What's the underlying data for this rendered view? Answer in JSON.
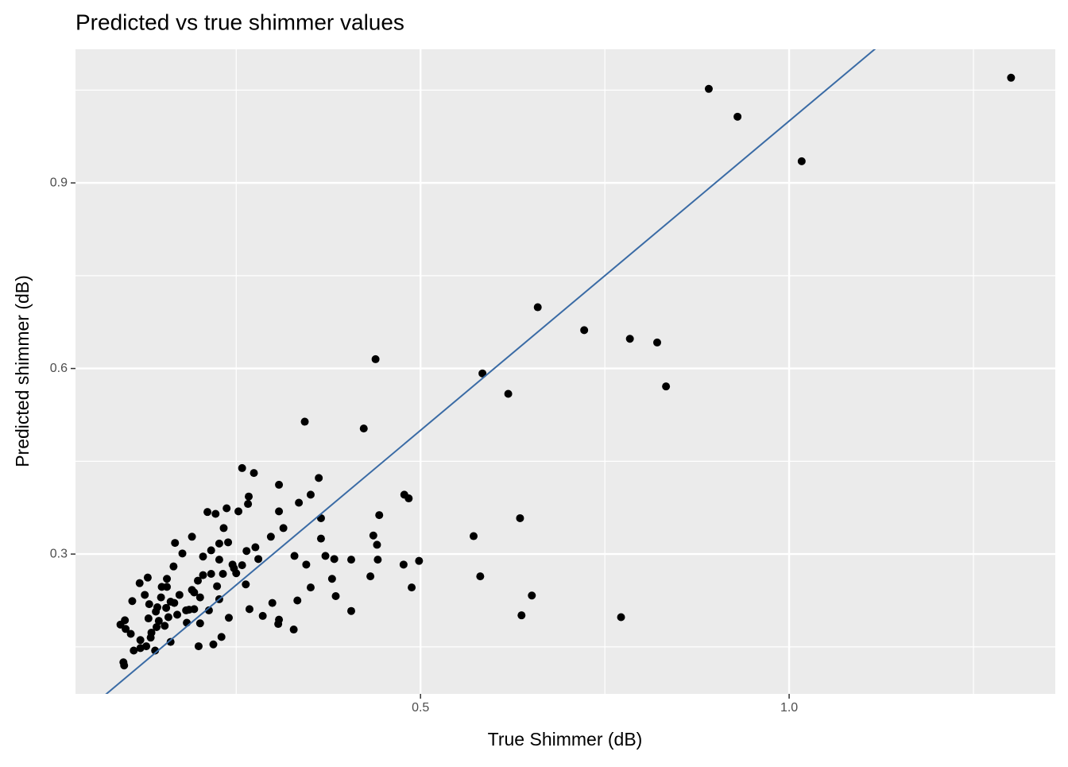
{
  "chart_data": {
    "type": "scatter",
    "title": "Predicted vs true shimmer values",
    "x_label": "True Shimmer (dB)",
    "y_label": "Predicted shimmer (dB)",
    "color": "#000000",
    "x": [
      1.301,
      0.891,
      0.93,
      1.017,
      0.659,
      0.722,
      0.784,
      0.821,
      0.833,
      0.439,
      0.584,
      0.619,
      0.343,
      0.423,
      0.258,
      0.274,
      0.362,
      0.308,
      0.478,
      0.484,
      0.351,
      0.267,
      0.335,
      0.266,
      0.237,
      0.211,
      0.222,
      0.253,
      0.308,
      0.444,
      0.365,
      0.635,
      0.233,
      0.314,
      0.436,
      0.572,
      0.297,
      0.365,
      0.19,
      0.167,
      0.227,
      0.239,
      0.441,
      0.276,
      0.216,
      0.264,
      0.177,
      0.205,
      0.329,
      0.371,
      0.28,
      0.227,
      0.383,
      0.406,
      0.442,
      0.498,
      0.245,
      0.258,
      0.345,
      0.477,
      0.165,
      0.247,
      0.205,
      0.216,
      0.232,
      0.25,
      0.13,
      0.156,
      0.198,
      0.38,
      0.432,
      0.581,
      0.119,
      0.263,
      0.149,
      0.156,
      0.224,
      0.351,
      0.488,
      0.19,
      0.126,
      0.173,
      0.193,
      0.385,
      0.651,
      0.148,
      0.201,
      0.227,
      0.109,
      0.161,
      0.333,
      0.299,
      0.132,
      0.143,
      0.166,
      0.155,
      0.186,
      0.193,
      0.182,
      0.213,
      0.268,
      0.141,
      0.17,
      0.406,
      0.158,
      0.131,
      0.637,
      0.772,
      0.24,
      0.286,
      0.308,
      0.099,
      0.145,
      0.183,
      0.201,
      0.307,
      0.093,
      0.153,
      0.142,
      0.1,
      0.328,
      0.135,
      0.107,
      0.23,
      0.134,
      0.12,
      0.161,
      0.128,
      0.14,
      0.111,
      0.12,
      0.199,
      0.219,
      0.097,
      0.098
    ],
    "values": [
      1.07,
      1.052,
      1.007,
      0.935,
      0.699,
      0.662,
      0.648,
      0.642,
      0.571,
      0.615,
      0.592,
      0.559,
      0.514,
      0.503,
      0.439,
      0.431,
      0.423,
      0.412,
      0.396,
      0.39,
      0.396,
      0.393,
      0.383,
      0.381,
      0.374,
      0.368,
      0.365,
      0.369,
      0.369,
      0.363,
      0.358,
      0.358,
      0.342,
      0.342,
      0.33,
      0.329,
      0.328,
      0.325,
      0.328,
      0.318,
      0.317,
      0.319,
      0.315,
      0.311,
      0.306,
      0.305,
      0.301,
      0.296,
      0.297,
      0.297,
      0.292,
      0.291,
      0.292,
      0.291,
      0.291,
      0.289,
      0.283,
      0.282,
      0.283,
      0.283,
      0.28,
      0.277,
      0.266,
      0.268,
      0.268,
      0.269,
      0.262,
      0.26,
      0.257,
      0.26,
      0.264,
      0.264,
      0.253,
      0.251,
      0.247,
      0.247,
      0.248,
      0.246,
      0.246,
      0.242,
      0.234,
      0.234,
      0.238,
      0.232,
      0.233,
      0.23,
      0.23,
      0.227,
      0.224,
      0.223,
      0.225,
      0.221,
      0.219,
      0.214,
      0.221,
      0.213,
      0.21,
      0.211,
      0.209,
      0.209,
      0.211,
      0.207,
      0.202,
      0.208,
      0.198,
      0.196,
      0.201,
      0.198,
      0.197,
      0.2,
      0.194,
      0.193,
      0.192,
      0.189,
      0.188,
      0.187,
      0.186,
      0.184,
      0.182,
      0.179,
      0.178,
      0.173,
      0.171,
      0.166,
      0.165,
      0.161,
      0.158,
      0.151,
      0.144,
      0.144,
      0.148,
      0.151,
      0.154,
      0.125,
      0.12
    ],
    "xlim": [
      0.032,
      1.361
    ],
    "ylim": [
      0.074,
      1.116
    ],
    "xticks": [
      0.5,
      {
        "value": 1,
        "label": "1.0"
      }
    ],
    "yticks": [
      0.3,
      0.6,
      0.9
    ],
    "x_minor_breaks": [
      0.25,
      0.75,
      1.25
    ],
    "y_minor_breaks": [
      0.15,
      0.45,
      0.75,
      1.05
    ],
    "grid": true,
    "reference_line": {
      "slope": 1,
      "intercept": 0,
      "color": "#3a6ba5"
    }
  }
}
